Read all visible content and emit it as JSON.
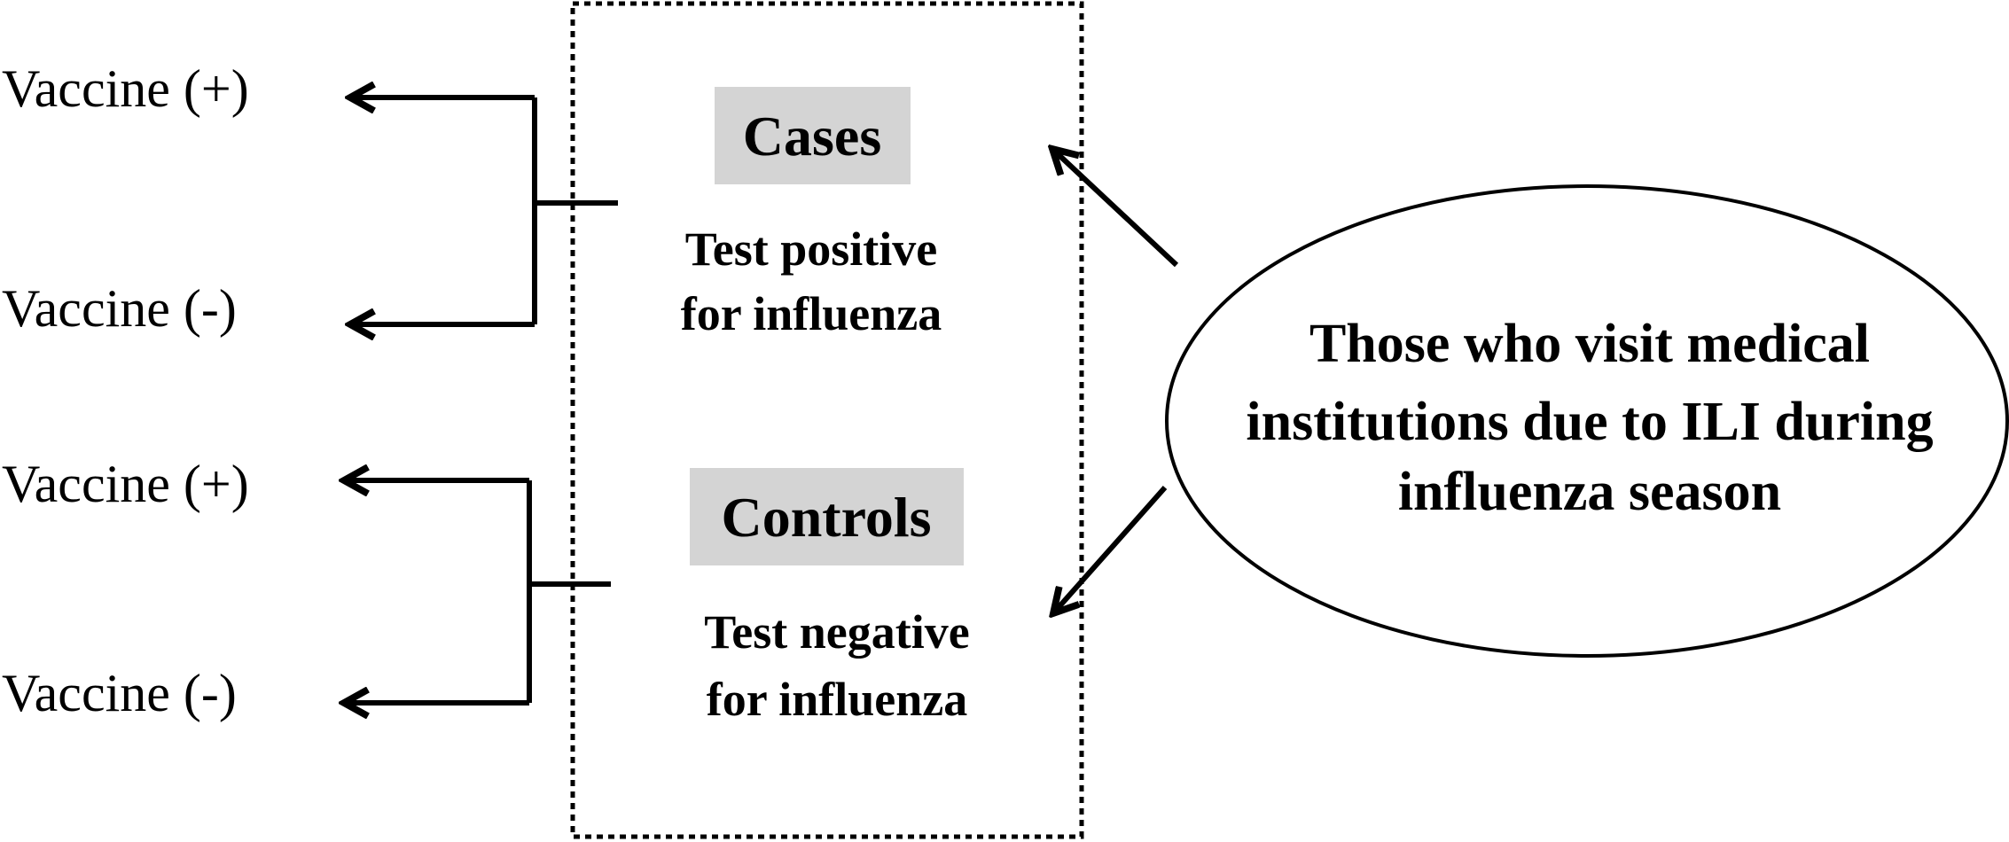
{
  "vaccine_labels": {
    "case_pos": "Vaccine (+)",
    "case_neg": "Vaccine (-)",
    "control_pos": "Vaccine (+)",
    "control_neg": "Vaccine (-)"
  },
  "cases": {
    "label": "Cases",
    "description_line1": "Test positive",
    "description_line2": "for influenza"
  },
  "controls": {
    "label": "Controls",
    "description_line1": "Test negative",
    "description_line2": "for influenza"
  },
  "population": {
    "line1": "Those who visit medical",
    "line2": "institutions due to ILI during",
    "line3": "influenza season"
  },
  "colors": {
    "label_background": "#d4d4d4",
    "stroke": "#000000"
  }
}
